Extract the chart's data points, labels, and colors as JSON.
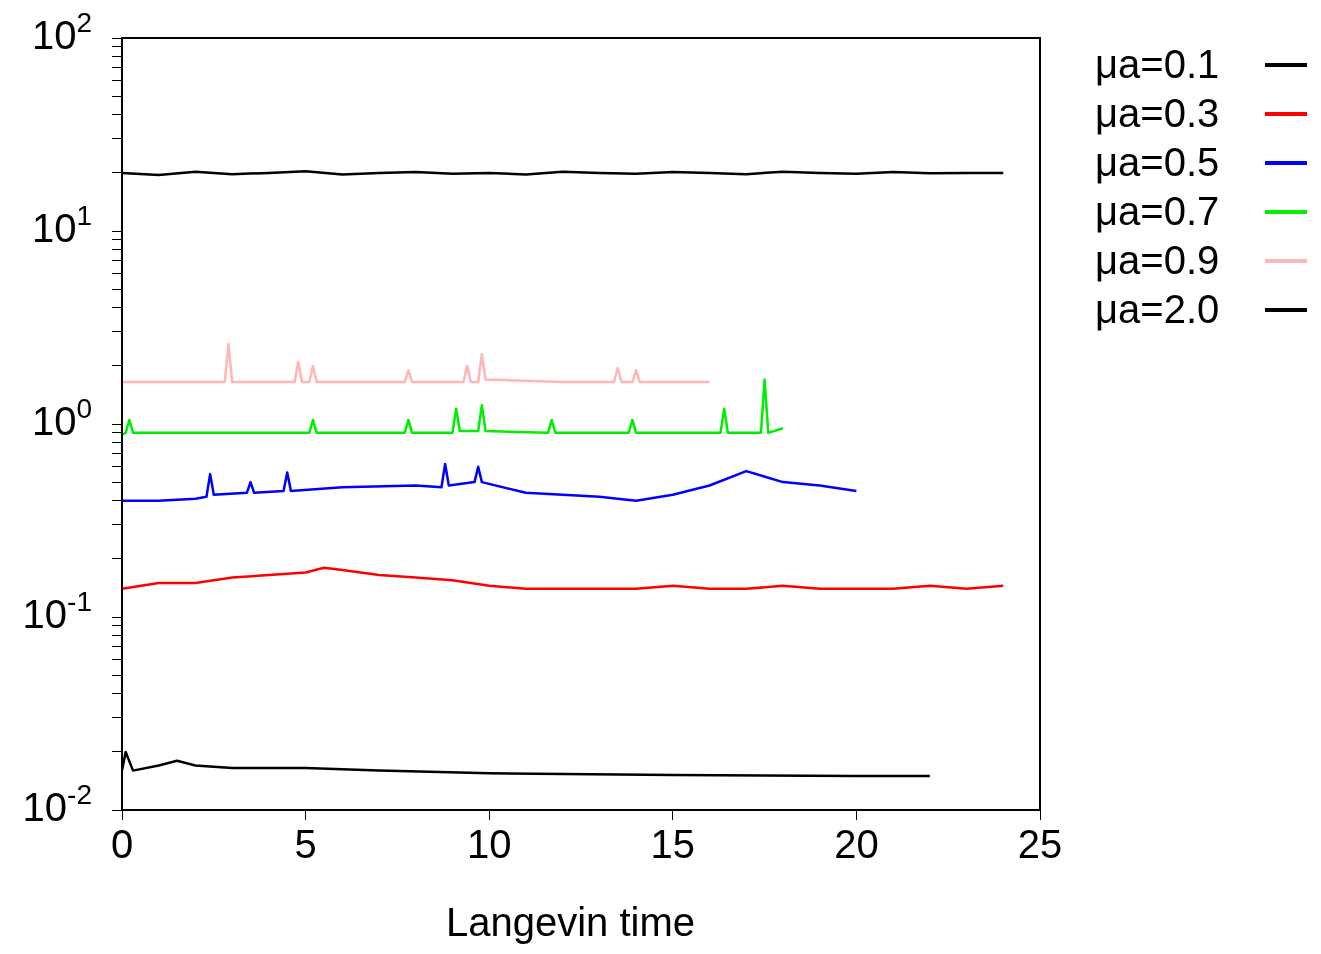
{
  "chart_data": {
    "type": "line",
    "xlabel": "Langevin time",
    "log": "y",
    "grid": false,
    "legend": "right",
    "marker": "none",
    "line_style": "solid",
    "xlim": [
      0,
      25
    ],
    "xticks": [
      0,
      5,
      10,
      15,
      20,
      25
    ],
    "ylim": [
      0.01,
      100
    ],
    "yticks": [
      {
        "value": 0.01,
        "label": "10$^{-2}$"
      },
      {
        "value": 0.02,
        "label": null
      },
      {
        "value": 0.03,
        "label": null
      },
      {
        "value": 0.04,
        "label": null
      },
      {
        "value": 0.05,
        "label": null
      },
      {
        "value": 0.06,
        "label": null
      },
      {
        "value": 0.07,
        "label": null
      },
      {
        "value": 0.08,
        "label": null
      },
      {
        "value": 0.09,
        "label": null
      },
      {
        "value": 0.1,
        "label": "10$^{-1}$"
      },
      {
        "value": 0.2,
        "label": null
      },
      {
        "value": 0.3,
        "label": null
      },
      {
        "value": 0.4,
        "label": null
      },
      {
        "value": 0.5,
        "label": null
      },
      {
        "value": 0.6,
        "label": null
      },
      {
        "value": 0.7,
        "label": null
      },
      {
        "value": 0.8,
        "label": null
      },
      {
        "value": 0.9,
        "label": null
      },
      {
        "value": 1,
        "label": "10$^{0}$"
      },
      {
        "value": 2,
        "label": null
      },
      {
        "value": 3,
        "label": null
      },
      {
        "value": 4,
        "label": null
      },
      {
        "value": 5,
        "label": null
      },
      {
        "value": 6,
        "label": null
      },
      {
        "value": 7,
        "label": null
      },
      {
        "value": 8,
        "label": null
      },
      {
        "value": 9,
        "label": null
      },
      {
        "value": 10,
        "label": "10$^{1}$"
      },
      {
        "value": 20,
        "label": null
      },
      {
        "value": 30,
        "label": null
      },
      {
        "value": 40,
        "label": null
      },
      {
        "value": 50,
        "label": null
      },
      {
        "value": 60,
        "label": null
      },
      {
        "value": 70,
        "label": null
      },
      {
        "value": 80,
        "label": null
      },
      {
        "value": 90,
        "label": null
      },
      {
        "value": 100,
        "label": "10$^{2}$"
      }
    ],
    "series": [
      {
        "name": "μa=0.1",
        "color": "#000000",
        "x": [
          0,
          1,
          2,
          3,
          4,
          5,
          6,
          7,
          8,
          9,
          10,
          11,
          12,
          13,
          14,
          15,
          16,
          17,
          18,
          19,
          20,
          21,
          22,
          23,
          24
        ],
        "values": [
          20,
          19.5,
          20.3,
          19.7,
          20,
          20.4,
          19.6,
          20,
          20.2,
          19.8,
          20,
          19.6,
          20.3,
          20,
          19.8,
          20.2,
          20,
          19.7,
          20.3,
          20,
          19.8,
          20.2,
          19.9,
          20,
          20
        ]
      },
      {
        "name": "μa=0.3",
        "color": "#ff0000",
        "x": [
          0,
          1,
          2,
          3,
          4,
          5,
          5.5,
          6,
          7,
          8,
          9,
          10,
          11,
          12,
          13,
          14,
          15,
          16,
          17,
          18,
          19,
          20,
          21,
          22,
          23,
          24
        ],
        "values": [
          0.14,
          0.15,
          0.15,
          0.16,
          0.165,
          0.17,
          0.18,
          0.175,
          0.165,
          0.16,
          0.155,
          0.145,
          0.14,
          0.14,
          0.14,
          0.14,
          0.145,
          0.14,
          0.14,
          0.145,
          0.14,
          0.14,
          0.14,
          0.145,
          0.14,
          0.145
        ]
      },
      {
        "name": "μa=0.5",
        "color": "#0000ff",
        "x": [
          0,
          1,
          2,
          2.3,
          2.4,
          2.5,
          3.4,
          3.5,
          3.6,
          4.4,
          4.5,
          4.6,
          6,
          8,
          8.7,
          8.8,
          8.9,
          9.6,
          9.7,
          9.8,
          11,
          13,
          14,
          15,
          16,
          17,
          18,
          19,
          20
        ],
        "values": [
          0.4,
          0.4,
          0.41,
          0.42,
          0.55,
          0.43,
          0.44,
          0.5,
          0.44,
          0.45,
          0.56,
          0.45,
          0.47,
          0.48,
          0.47,
          0.62,
          0.48,
          0.5,
          0.6,
          0.5,
          0.44,
          0.42,
          0.4,
          0.43,
          0.48,
          0.57,
          0.5,
          0.48,
          0.45
        ]
      },
      {
        "name": "μa=0.7",
        "color": "#00ee00",
        "x": [
          0,
          0.1,
          0.2,
          0.3,
          2,
          5.1,
          5.2,
          5.3,
          7.7,
          7.8,
          7.9,
          9,
          9.1,
          9.2,
          9.7,
          9.8,
          9.9,
          11.6,
          11.7,
          11.8,
          13.8,
          13.9,
          14,
          16.3,
          16.4,
          16.5,
          17.4,
          17.5,
          17.6,
          18
        ],
        "values": [
          0.88,
          0.9,
          1.05,
          0.9,
          0.9,
          0.9,
          1.05,
          0.9,
          0.9,
          1.05,
          0.9,
          0.9,
          1.2,
          0.92,
          0.92,
          1.25,
          0.92,
          0.9,
          1.05,
          0.9,
          0.9,
          1.05,
          0.9,
          0.9,
          1.2,
          0.9,
          0.9,
          1.7,
          0.9,
          0.95
        ]
      },
      {
        "name": "μa=0.9",
        "color": "#ffb6b6",
        "x": [
          0,
          2,
          2.8,
          2.9,
          3,
          4.7,
          4.8,
          4.9,
          5.1,
          5.2,
          5.3,
          7.7,
          7.8,
          7.9,
          9.3,
          9.4,
          9.5,
          9.7,
          9.8,
          9.9,
          12,
          13.4,
          13.5,
          13.6,
          13.9,
          14,
          14.1,
          16
        ],
        "values": [
          1.65,
          1.65,
          1.65,
          2.6,
          1.65,
          1.65,
          2.1,
          1.65,
          1.65,
          2,
          1.65,
          1.65,
          1.9,
          1.65,
          1.65,
          2,
          1.65,
          1.65,
          2.3,
          1.7,
          1.65,
          1.65,
          1.95,
          1.65,
          1.65,
          1.9,
          1.65,
          1.65
        ]
      },
      {
        "name": "μa=2.0",
        "color": "#000000",
        "x": [
          0,
          0.1,
          0.3,
          1,
          1.5,
          2,
          3,
          5,
          7,
          10,
          15,
          20,
          22
        ],
        "values": [
          0.016,
          0.02,
          0.016,
          0.017,
          0.018,
          0.017,
          0.0165,
          0.0165,
          0.016,
          0.0155,
          0.0152,
          0.015,
          0.015
        ]
      }
    ]
  }
}
